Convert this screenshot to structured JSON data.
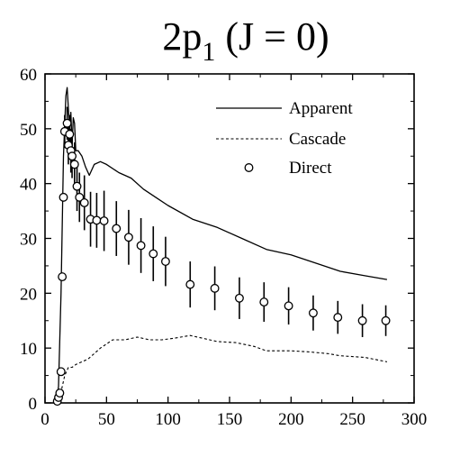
{
  "chart_data": {
    "type": "line",
    "title": {
      "main": "2p",
      "subscript": "1",
      "suffix": " (J = 0)"
    },
    "xlabel": "",
    "ylabel": "",
    "xlim": [
      0,
      300
    ],
    "ylim": [
      0,
      60
    ],
    "xticks": [
      0,
      50,
      100,
      150,
      200,
      250,
      300
    ],
    "yticks": [
      0,
      10,
      20,
      30,
      40,
      50,
      60
    ],
    "grid": false,
    "legend_position": "top-right",
    "series": [
      {
        "name": "Apparent",
        "style": "solid",
        "points": [
          [
            9,
            0
          ],
          [
            11,
            3
          ],
          [
            13,
            20
          ],
          [
            15,
            45
          ],
          [
            17,
            56
          ],
          [
            18,
            57.5
          ],
          [
            20,
            50
          ],
          [
            21,
            53
          ],
          [
            22,
            47
          ],
          [
            23,
            52
          ],
          [
            24,
            51
          ],
          [
            25,
            46
          ],
          [
            27,
            46
          ],
          [
            30,
            45
          ],
          [
            33,
            43
          ],
          [
            36,
            41.5
          ],
          [
            40,
            43.5
          ],
          [
            45,
            44
          ],
          [
            50,
            43.5
          ],
          [
            60,
            42
          ],
          [
            70,
            41
          ],
          [
            80,
            39
          ],
          [
            90,
            37.5
          ],
          [
            100,
            36
          ],
          [
            120,
            33.5
          ],
          [
            140,
            32
          ],
          [
            160,
            30
          ],
          [
            180,
            28
          ],
          [
            200,
            27
          ],
          [
            220,
            25.5
          ],
          [
            240,
            24
          ],
          [
            260,
            23.2
          ],
          [
            278,
            22.5
          ]
        ]
      },
      {
        "name": "Cascade",
        "style": "dashed",
        "points": [
          [
            10,
            0
          ],
          [
            13,
            2
          ],
          [
            16,
            5
          ],
          [
            19,
            6.5
          ],
          [
            22,
            6.5
          ],
          [
            25,
            7
          ],
          [
            30,
            7.5
          ],
          [
            35,
            8
          ],
          [
            40,
            9
          ],
          [
            45,
            10
          ],
          [
            55,
            11.5
          ],
          [
            65,
            11.5
          ],
          [
            75,
            12
          ],
          [
            85,
            11.5
          ],
          [
            95,
            11.5
          ],
          [
            105,
            11.8
          ],
          [
            118,
            12.3
          ],
          [
            128,
            11.8
          ],
          [
            140,
            11.2
          ],
          [
            155,
            11
          ],
          [
            170,
            10.3
          ],
          [
            180,
            9.5
          ],
          [
            200,
            9.5
          ],
          [
            215,
            9.3
          ],
          [
            230,
            9
          ],
          [
            240,
            8.6
          ],
          [
            260,
            8.3
          ],
          [
            278,
            7.5
          ]
        ]
      },
      {
        "name": "Direct",
        "style": "markers",
        "points": [
          {
            "x": 10,
            "y": 0.3,
            "err": 0
          },
          {
            "x": 11,
            "y": 1,
            "err": 0
          },
          {
            "x": 12,
            "y": 1.8,
            "err": 0
          },
          {
            "x": 13,
            "y": 5.7,
            "err": 0
          },
          {
            "x": 14,
            "y": 23,
            "err": 0
          },
          {
            "x": 15,
            "y": 37.5,
            "err": 0
          },
          {
            "x": 16,
            "y": 49.5,
            "err": 3
          },
          {
            "x": 18,
            "y": 51,
            "err": 3
          },
          {
            "x": 19,
            "y": 47,
            "err": 3.5
          },
          {
            "x": 20,
            "y": 49,
            "err": 3.5
          },
          {
            "x": 21,
            "y": 46,
            "err": 4
          },
          {
            "x": 22,
            "y": 45,
            "err": 4
          },
          {
            "x": 24,
            "y": 43.5,
            "err": 4
          },
          {
            "x": 26,
            "y": 39.5,
            "err": 4.5
          },
          {
            "x": 28,
            "y": 37.5,
            "err": 4.5
          },
          {
            "x": 32,
            "y": 36.5,
            "err": 5
          },
          {
            "x": 37,
            "y": 33.5,
            "err": 5
          },
          {
            "x": 42,
            "y": 33.3,
            "err": 5
          },
          {
            "x": 48,
            "y": 33.2,
            "err": 5.5
          },
          {
            "x": 58,
            "y": 31.8,
            "err": 5
          },
          {
            "x": 68,
            "y": 30.2,
            "err": 5
          },
          {
            "x": 78,
            "y": 28.7,
            "err": 5
          },
          {
            "x": 88,
            "y": 27.2,
            "err": 5
          },
          {
            "x": 98,
            "y": 25.8,
            "err": 4.5
          },
          {
            "x": 118,
            "y": 21.6,
            "err": 4.2
          },
          {
            "x": 138,
            "y": 20.9,
            "err": 4
          },
          {
            "x": 158,
            "y": 19.1,
            "err": 3.8
          },
          {
            "x": 178,
            "y": 18.4,
            "err": 3.6
          },
          {
            "x": 198,
            "y": 17.7,
            "err": 3.4
          },
          {
            "x": 218,
            "y": 16.4,
            "err": 3.2
          },
          {
            "x": 238,
            "y": 15.6,
            "err": 3
          },
          {
            "x": 258,
            "y": 15.0,
            "err": 3
          },
          {
            "x": 277,
            "y": 15.0,
            "err": 2.8
          }
        ]
      }
    ]
  }
}
